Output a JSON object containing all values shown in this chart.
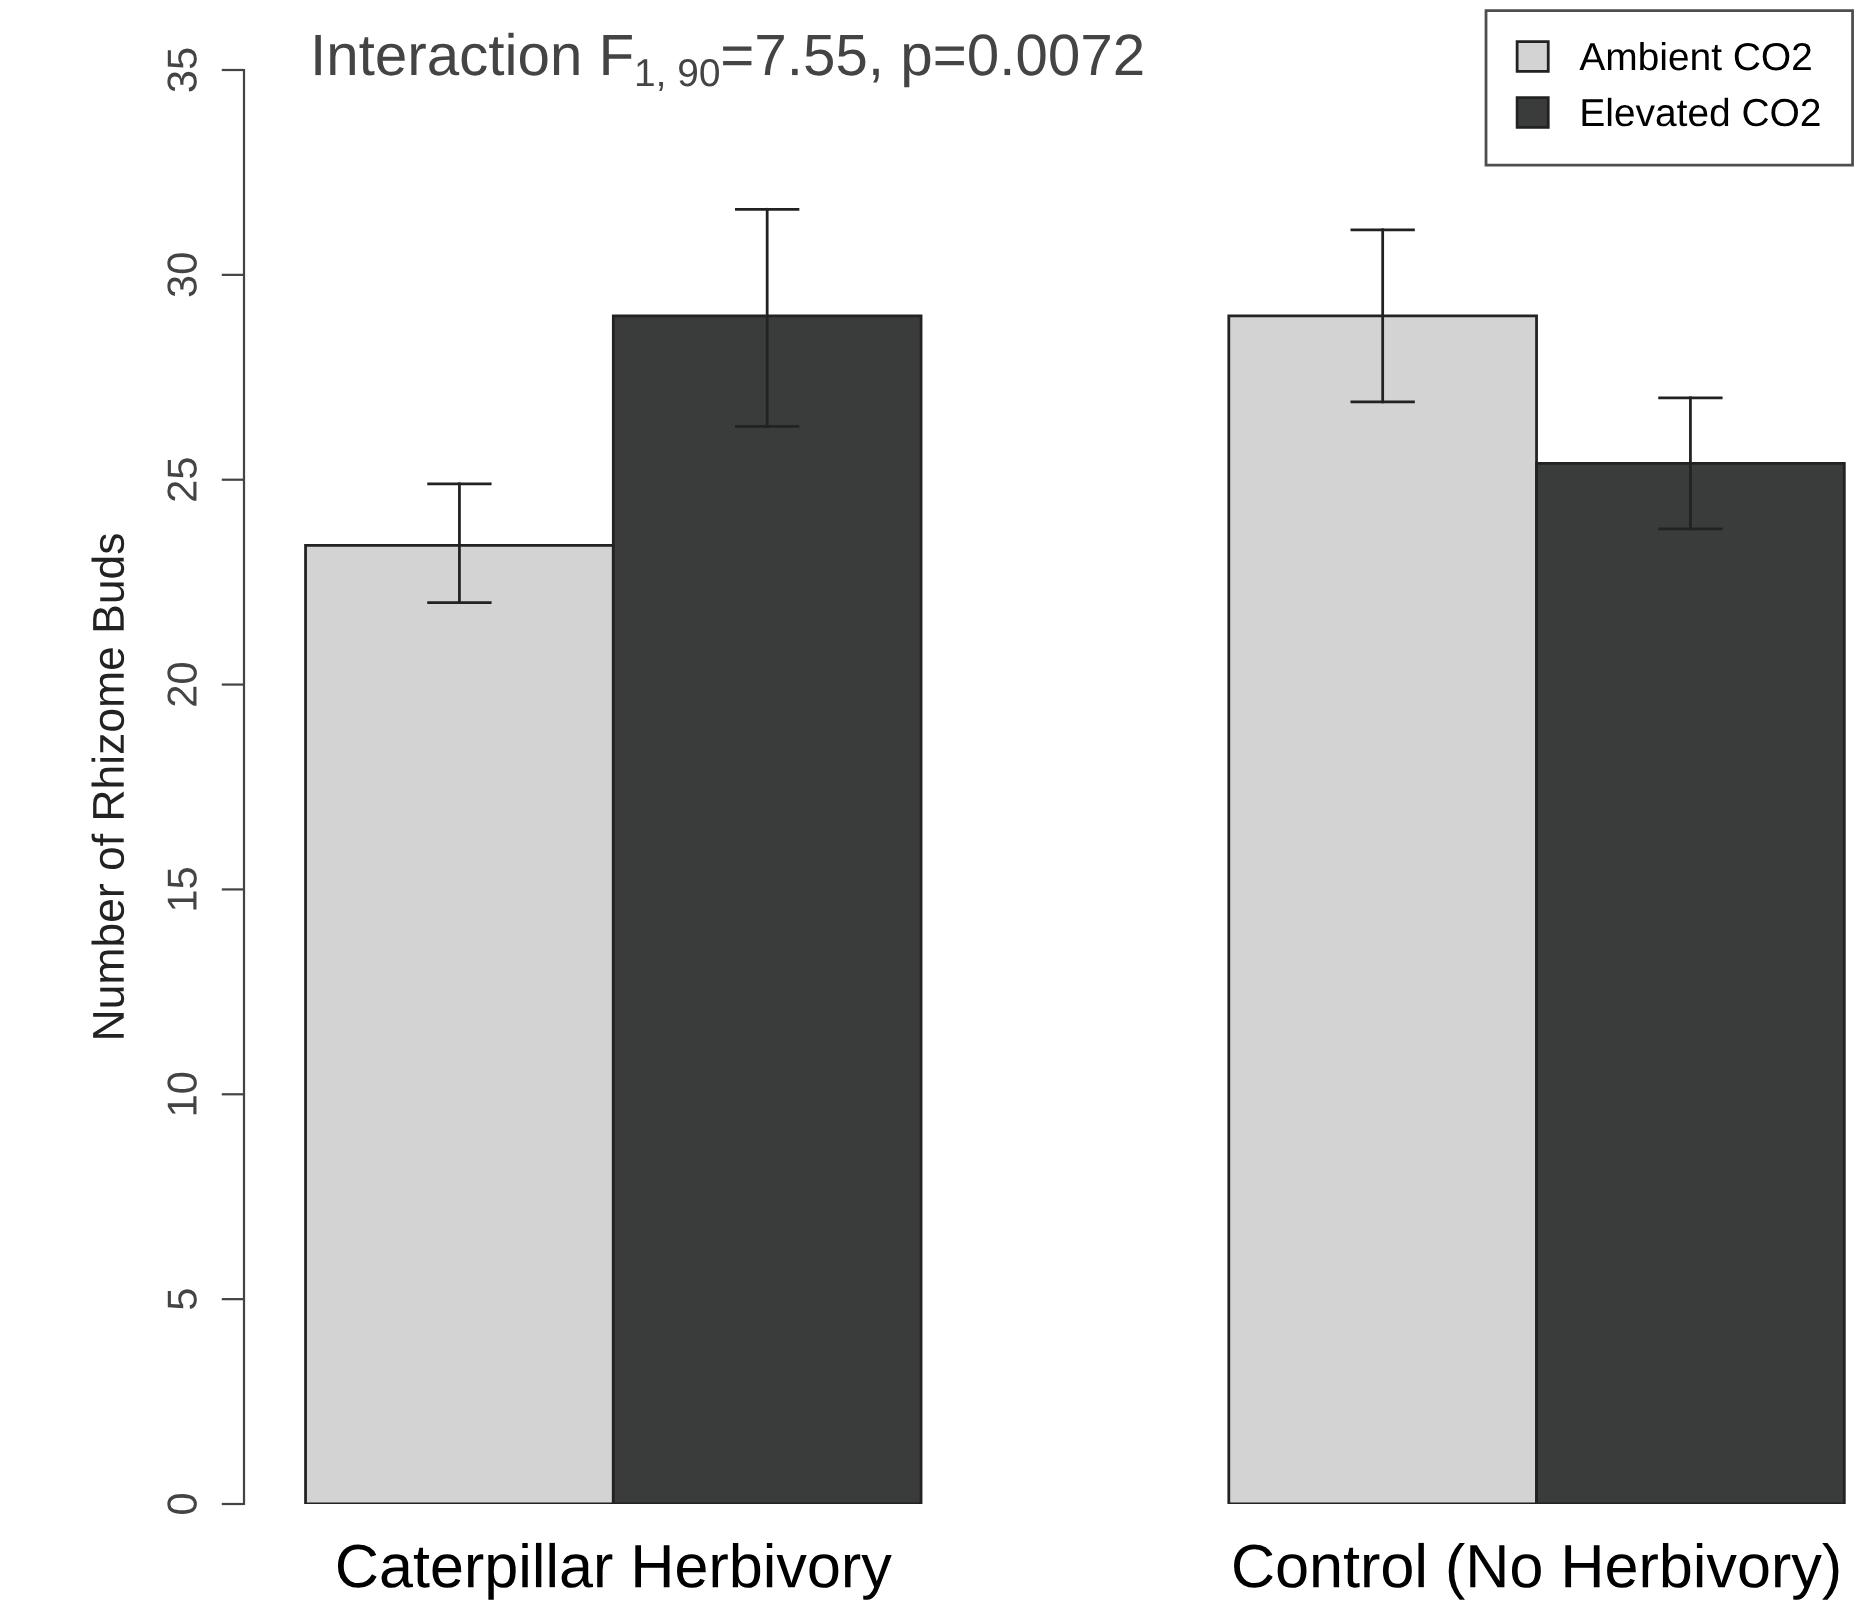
{
  "chart_data": {
    "type": "bar",
    "ylabel": "Number of Rhizome Buds",
    "annotations": [
      "Interaction F$_{1, 90}$=7.55, p=0.0072"
    ],
    "categories": [
      "Caterpillar Herbivory",
      "Control (No Herbivory)"
    ],
    "series": [
      {
        "name": "Ambient CO2",
        "color": "#d3d3d3",
        "values": [
          23.4,
          29.0
        ],
        "errors": [
          [
            22.0,
            24.9
          ],
          [
            26.9,
            31.1
          ]
        ]
      },
      {
        "name": "Elevated CO2",
        "color": "#3a3c3b",
        "values": [
          29.0,
          25.4
        ],
        "errors": [
          [
            26.3,
            31.6
          ],
          [
            23.8,
            27.0
          ]
        ]
      }
    ],
    "ylim": [
      0,
      35
    ],
    "yticks": [
      0,
      5,
      10,
      15,
      20,
      25,
      30,
      35
    ],
    "legend": "top right",
    "grid": false
  }
}
